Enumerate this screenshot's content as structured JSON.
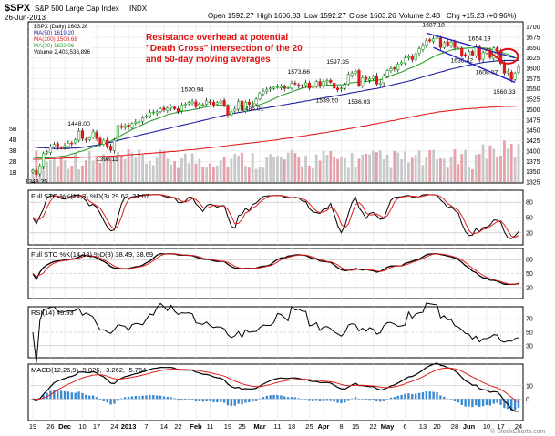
{
  "chart_data": {
    "type": "line",
    "header": {
      "symbol": "$SPX",
      "name": "S&P 500 Large Cap Index",
      "exchange": "INDX",
      "date": "26-Jun-2013",
      "open": "Open 1592.27",
      "high": "High 1606.83",
      "low": "Low 1592.27",
      "close": "Close 1603.26",
      "volume": "Volume 2.4B",
      "change": "Chg +15.23 (+0.96%)",
      "watermark": "© StockCharts.com"
    },
    "legend": {
      "price": "$SPX (Daily) 1603.26",
      "ma50": "MA(50) 1619.20",
      "ma200": "MA(200) 1508.68",
      "ma20": "MA(20) 1622.06",
      "volume": "Volume 2,403,536,896"
    },
    "annotation": [
      "Resistance overhead at potential",
      "\"Death Cross\" intersection of the 20",
      "and 50-day moving averages"
    ],
    "colors": {
      "price": "#000000",
      "up": "#18a018",
      "down": "#e01818",
      "ma20": "#2e9e2e",
      "ma50": "#2020a0",
      "ma200": "#e02020",
      "volume_up": "#c8c8c8",
      "volume_down": "#e8a0a8",
      "annotation": "#e01010",
      "stoch_k": "#000000",
      "stoch_d": "#e02020",
      "macd_hist": "#3a8ad0"
    },
    "x_labels": [
      "19",
      "26",
      "Dec",
      "10",
      "17",
      "24",
      "2013",
      "7",
      "14",
      "22",
      "Feb",
      "11",
      "19",
      "25",
      "Mar",
      "11",
      "18",
      "25",
      "Apr",
      "8",
      "15",
      "22",
      "May",
      "6",
      "13",
      "20",
      "28",
      "Jun",
      "10",
      "17",
      "24"
    ],
    "price_axis": {
      "ticks": [
        1325,
        1350,
        1375,
        1400,
        1425,
        1450,
        1475,
        1500,
        1525,
        1550,
        1575,
        1600,
        1625,
        1650,
        1675,
        1700
      ],
      "ylim": [
        1325,
        1710
      ]
    },
    "volume_axis": {
      "ticks": [
        "5B",
        "4B",
        "3B",
        "2B",
        "1B"
      ]
    },
    "price_labels": [
      {
        "i": 1,
        "v": 1343.35,
        "text": "1343.35"
      },
      {
        "i": 13,
        "v": 1448.0,
        "text": "1448.00"
      },
      {
        "i": 21,
        "v": 1398.11,
        "text": "1398.11"
      },
      {
        "i": 45,
        "v": 1530.94,
        "text": "1530.94"
      },
      {
        "i": 62,
        "v": 1485.01,
        "text": "1485.01"
      },
      {
        "i": 75,
        "v": 1573.66,
        "text": "1573.66"
      },
      {
        "i": 83,
        "v": 1539.5,
        "text": "1539.50"
      },
      {
        "i": 86,
        "v": 1597.35,
        "text": "1597.35"
      },
      {
        "i": 92,
        "v": 1536.03,
        "text": "1536.03"
      },
      {
        "i": 113,
        "v": 1687.18,
        "text": "1687.18"
      },
      {
        "i": 121,
        "v": 1636.42,
        "text": "1636.42"
      },
      {
        "i": 126,
        "v": 1654.19,
        "text": "1654.19"
      },
      {
        "i": 128,
        "v": 1608.07,
        "text": "1608.07"
      },
      {
        "i": 133,
        "v": 1560.33,
        "text": "1560.33"
      }
    ],
    "close": [
      1353,
      1343.35,
      1364,
      1394,
      1398,
      1410,
      1416,
      1409,
      1407,
      1413,
      1419,
      1418,
      1427,
      1448,
      1430,
      1427,
      1432,
      1446,
      1430,
      1418,
      1426,
      1410,
      1402,
      1426,
      1462,
      1457,
      1461,
      1458,
      1466,
      1470,
      1472,
      1480,
      1485,
      1493,
      1494,
      1495,
      1502,
      1499,
      1503,
      1508,
      1502,
      1495,
      1511,
      1513,
      1517,
      1519,
      1507,
      1513,
      1512,
      1521,
      1518,
      1511,
      1517,
      1521,
      1511,
      1487,
      1495,
      1502,
      1520,
      1498,
      1518,
      1513,
      1515,
      1525,
      1540,
      1544,
      1548,
      1552,
      1554,
      1555,
      1556,
      1551,
      1553,
      1563,
      1562,
      1558,
      1556,
      1565,
      1552,
      1558,
      1568,
      1556,
      1568,
      1570,
      1566,
      1552,
      1548,
      1552,
      1561,
      1585,
      1588,
      1593,
      1558,
      1577,
      1573,
      1575,
      1580,
      1562,
      1564,
      1582,
      1594,
      1599,
      1598,
      1610,
      1615,
      1625,
      1628,
      1621,
      1635,
      1647,
      1656,
      1667,
      1666,
      1671,
      1675,
      1650,
      1662,
      1656,
      1663,
      1650,
      1648,
      1631,
      1631,
      1640,
      1632,
      1652,
      1620,
      1638,
      1642,
      1626,
      1649,
      1641,
      1612,
      1588,
      1593,
      1573,
      1588,
      1603
    ],
    "ma20": [
      1385,
      1384,
      1383,
      1383,
      1383,
      1384,
      1385,
      1386,
      1387,
      1388,
      1390,
      1393,
      1395,
      1398,
      1400,
      1403,
      1406,
      1410,
      1412,
      1415,
      1418,
      1421,
      1424,
      1429,
      1433,
      1438,
      1443,
      1447,
      1452,
      1456,
      1460,
      1464,
      1468,
      1472,
      1475,
      1478,
      1481,
      1484,
      1488,
      1490,
      1492,
      1494,
      1496,
      1497,
      1498,
      1500,
      1501,
      1503,
      1505,
      1507,
      1508,
      1509,
      1510,
      1511,
      1511,
      1510,
      1509,
      1509,
      1510,
      1510,
      1509,
      1509,
      1509,
      1510,
      1512,
      1515,
      1518,
      1522,
      1526,
      1530,
      1534,
      1537,
      1540,
      1543,
      1546,
      1549,
      1552,
      1554,
      1555,
      1556,
      1556,
      1557,
      1558,
      1559,
      1559,
      1560,
      1560,
      1560,
      1561,
      1563,
      1565,
      1566,
      1567,
      1568,
      1568,
      1569,
      1570,
      1571,
      1572,
      1575,
      1578,
      1582,
      1585,
      1588,
      1591,
      1595,
      1599,
      1602,
      1606,
      1610,
      1614,
      1619,
      1623,
      1628,
      1632,
      1635,
      1638,
      1641,
      1644,
      1646,
      1647,
      1648,
      1648,
      1649,
      1649,
      1650,
      1649,
      1649,
      1648,
      1646,
      1645,
      1643,
      1640,
      1636,
      1634,
      1630,
      1626,
      1622
    ],
    "ma50": [
      1410,
      1409,
      1408,
      1408,
      1407,
      1407,
      1406,
      1406,
      1406,
      1406,
      1406,
      1407,
      1407,
      1408,
      1409,
      1410,
      1412,
      1413,
      1414,
      1416,
      1418,
      1420,
      1421,
      1423,
      1425,
      1428,
      1430,
      1432,
      1434,
      1436,
      1438,
      1440,
      1442,
      1444,
      1446,
      1448,
      1450,
      1452,
      1454,
      1456,
      1458,
      1460,
      1462,
      1464,
      1466,
      1468,
      1470,
      1472,
      1474,
      1476,
      1478,
      1480,
      1482,
      1484,
      1486,
      1488,
      1490,
      1491,
      1493,
      1494,
      1496,
      1497,
      1499,
      1500,
      1502,
      1503,
      1504,
      1506,
      1507,
      1509,
      1510,
      1512,
      1513,
      1515,
      1516,
      1518,
      1519,
      1521,
      1522,
      1524,
      1525,
      1527,
      1528,
      1530,
      1531,
      1533,
      1534,
      1536,
      1537,
      1539,
      1541,
      1542,
      1544,
      1545,
      1547,
      1548,
      1550,
      1551,
      1553,
      1555,
      1557,
      1559,
      1561,
      1563,
      1565,
      1567,
      1569,
      1571,
      1574,
      1576,
      1579,
      1581,
      1584,
      1586,
      1589,
      1591,
      1593,
      1596,
      1598,
      1600,
      1602,
      1604,
      1606,
      1608,
      1609,
      1611,
      1612,
      1614,
      1615,
      1616,
      1617,
      1618,
      1618,
      1619,
      1619,
      1619,
      1619,
      1619
    ],
    "ma200": [
      1380,
      1380,
      1380,
      1381,
      1381,
      1381,
      1382,
      1382,
      1382,
      1383,
      1383,
      1383,
      1384,
      1384,
      1385,
      1385,
      1385,
      1386,
      1386,
      1387,
      1387,
      1387,
      1388,
      1388,
      1389,
      1389,
      1390,
      1391,
      1391,
      1392,
      1392,
      1393,
      1394,
      1394,
      1395,
      1396,
      1396,
      1397,
      1398,
      1399,
      1399,
      1400,
      1401,
      1402,
      1403,
      1403,
      1404,
      1405,
      1406,
      1407,
      1408,
      1409,
      1410,
      1411,
      1412,
      1413,
      1414,
      1415,
      1416,
      1417,
      1418,
      1419,
      1420,
      1421,
      1422,
      1423,
      1424,
      1425,
      1426,
      1427,
      1429,
      1430,
      1431,
      1432,
      1434,
      1435,
      1436,
      1437,
      1439,
      1440,
      1441,
      1443,
      1444,
      1445,
      1447,
      1448,
      1449,
      1451,
      1452,
      1454,
      1455,
      1457,
      1458,
      1460,
      1461,
      1463,
      1465,
      1466,
      1468,
      1469,
      1471,
      1473,
      1474,
      1476,
      1478,
      1479,
      1481,
      1483,
      1484,
      1486,
      1488,
      1489,
      1491,
      1492,
      1494,
      1495,
      1496,
      1497,
      1498,
      1499,
      1500,
      1501,
      1502,
      1502,
      1503,
      1503,
      1504,
      1505,
      1505,
      1506,
      1506,
      1507,
      1507,
      1508,
      1508,
      1508,
      1508,
      1509
    ],
    "stoch14": {
      "label": "Full STO %K(14,3) %D(3) 29.62, 21.07",
      "k_last": 29.62,
      "d_last": 21.07,
      "ticks": [
        20,
        50,
        80
      ]
    },
    "stoch14_13": {
      "label": "Full STO %K(14,13) %D(3) 38.49, 38.69",
      "ticks": [
        20,
        50,
        80
      ]
    },
    "rsi": {
      "label": "RSI(14) 45.93",
      "ticks": [
        30,
        50,
        70
      ],
      "last": 45.93
    },
    "macd": {
      "label": "MACD(12,26,9) -9.026, -3.262, -5.764",
      "macd": -9.026,
      "signal": -3.262,
      "hist": -5.764,
      "ticks": [
        0,
        10
      ]
    }
  }
}
